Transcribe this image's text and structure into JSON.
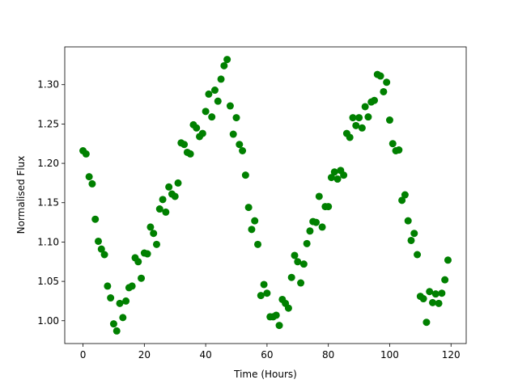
{
  "chart_data": {
    "type": "scatter",
    "x_label": "Time (Hours)",
    "y_label": "Normalised Flux",
    "color": "#008000",
    "x": [
      0,
      1,
      2,
      3,
      4,
      5,
      6,
      7,
      8,
      9,
      10,
      11,
      12,
      13,
      14,
      15,
      16,
      17,
      18,
      19,
      20,
      21,
      22,
      23,
      24,
      25,
      26,
      27,
      28,
      29,
      30,
      31,
      32,
      33,
      34,
      35,
      36,
      37,
      38,
      39,
      40,
      41,
      42,
      43,
      44,
      45,
      46,
      47,
      48,
      49,
      50,
      51,
      52,
      53,
      54,
      55,
      56,
      57,
      58,
      59,
      60,
      61,
      62,
      63,
      64,
      65,
      66,
      67,
      68,
      69,
      70,
      71,
      72,
      73,
      74,
      75,
      76,
      77,
      78,
      79,
      80,
      81,
      82,
      83,
      84,
      85,
      86,
      87,
      88,
      89,
      90,
      91,
      92,
      93,
      94,
      95,
      96,
      97,
      98,
      99,
      100,
      101,
      102,
      103,
      104,
      105,
      106,
      107,
      108,
      109,
      110,
      111,
      112,
      113,
      114,
      115,
      116,
      117,
      118,
      119
    ],
    "values": [
      1.216,
      1.212,
      1.183,
      1.174,
      1.129,
      1.101,
      1.091,
      1.084,
      1.044,
      1.029,
      0.996,
      0.987,
      1.022,
      1.004,
      1.025,
      1.042,
      1.044,
      1.08,
      1.075,
      1.054,
      1.086,
      1.085,
      1.119,
      1.111,
      1.097,
      1.142,
      1.154,
      1.138,
      1.17,
      1.161,
      1.158,
      1.175,
      1.226,
      1.224,
      1.214,
      1.212,
      1.249,
      1.245,
      1.234,
      1.238,
      1.266,
      1.288,
      1.259,
      1.293,
      1.279,
      1.307,
      1.324,
      1.332,
      1.273,
      1.237,
      1.258,
      1.224,
      1.216,
      1.185,
      1.144,
      1.116,
      1.127,
      1.097,
      1.032,
      1.046,
      1.035,
      1.005,
      1.005,
      1.007,
      0.994,
      1.027,
      1.022,
      1.016,
      1.055,
      1.083,
      1.075,
      1.048,
      1.072,
      1.098,
      1.114,
      1.126,
      1.125,
      1.158,
      1.119,
      1.145,
      1.145,
      1.182,
      1.189,
      1.18,
      1.191,
      1.185,
      1.238,
      1.233,
      1.258,
      1.248,
      1.258,
      1.245,
      1.272,
      1.259,
      1.278,
      1.28,
      1.313,
      1.311,
      1.291,
      1.303,
      1.255,
      1.225,
      1.216,
      1.217,
      1.153,
      1.16,
      1.127,
      1.102,
      1.111,
      1.084,
      1.031,
      1.028,
      0.998,
      1.037,
      1.023,
      1.034,
      1.022,
      1.035,
      1.052,
      1.077
    ],
    "xlim": [
      -5.95,
      124.95
    ],
    "ylim": [
      0.971,
      1.348
    ],
    "xticks": [
      0,
      20,
      40,
      60,
      80,
      100,
      120
    ],
    "yticks": [
      {
        "value": 1.0,
        "label": "1.00"
      },
      {
        "value": 1.05,
        "label": "1.05"
      },
      {
        "value": 1.1,
        "label": "1.10"
      },
      {
        "value": 1.15,
        "label": "1.15"
      },
      {
        "value": 1.2,
        "label": "1.20"
      },
      {
        "value": 1.25,
        "label": "1.25"
      },
      {
        "value": 1.3,
        "label": "1.30"
      }
    ]
  }
}
